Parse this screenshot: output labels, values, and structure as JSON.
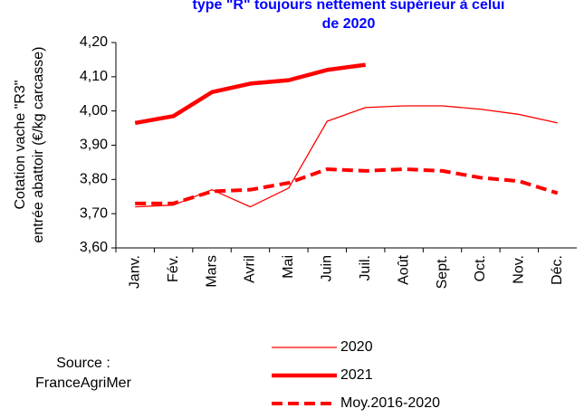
{
  "chart_data": {
    "type": "line",
    "title": [
      "type \"R\" toujours nettement supérieur à celui",
      "de 2020"
    ],
    "ylabel": [
      "Cotation vache \"R3\"",
      "entrée abattoir (€/kg carcasse)"
    ],
    "source": [
      "Source :",
      "FranceAgriMer"
    ],
    "categories": [
      "Janv.",
      "Fév.",
      "Mars",
      "Avril",
      "Mai",
      "Juin",
      "Juil.",
      "Août",
      "Sept.",
      "Oct.",
      "Nov.",
      "Déc."
    ],
    "series": [
      {
        "name": "2020",
        "color": "#ff0000",
        "style": "thin",
        "values": [
          3.72,
          3.725,
          3.77,
          3.72,
          3.775,
          3.97,
          4.01,
          4.015,
          4.015,
          4.005,
          3.99,
          3.965
        ]
      },
      {
        "name": "2021",
        "color": "#ff0000",
        "style": "thick",
        "values": [
          3.965,
          3.985,
          4.055,
          4.08,
          4.09,
          4.12,
          4.135,
          null,
          null,
          null,
          null,
          null
        ]
      },
      {
        "name": "Moy.2016-2020",
        "color": "#ff0000",
        "style": "dashed",
        "values": [
          3.73,
          3.73,
          3.765,
          3.77,
          3.79,
          3.83,
          3.825,
          3.83,
          3.825,
          3.805,
          3.795,
          3.76
        ]
      }
    ],
    "ylim": [
      3.6,
      4.2
    ],
    "yticks": [
      {
        "value": 3.6,
        "label": "3,60"
      },
      {
        "value": 3.7,
        "label": "3,70"
      },
      {
        "value": 3.8,
        "label": "3,80"
      },
      {
        "value": 3.9,
        "label": "3,90"
      },
      {
        "value": 4.0,
        "label": "4,00"
      },
      {
        "value": 4.1,
        "label": "4,10"
      },
      {
        "value": 4.2,
        "label": "4,20"
      }
    ]
  }
}
